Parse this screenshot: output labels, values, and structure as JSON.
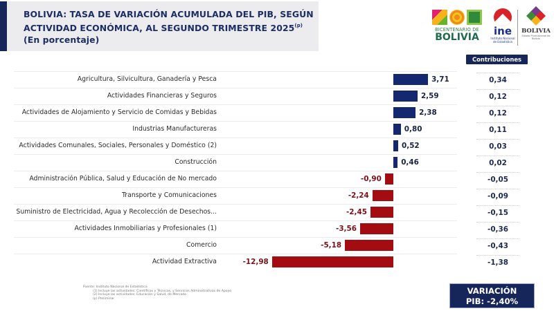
{
  "header": {
    "title_line1": "BOLIVIA: TASA DE VARIACIÓN ACUMULADA DEL PIB, SEGÚN",
    "title_line2": "ACTIVIDAD ECONÓMICA, AL SEGUNDO TRIMESTRE 2025",
    "title_superscript": "(p)",
    "subtitle": "(En porcentaje)"
  },
  "logos": {
    "bicentenario_small": "BICENTENARIO DE",
    "bicentenario_big": "BOLIVIA",
    "ine_text": "ine",
    "ine_sub": "Instituto Nacional de Estadística",
    "bolivia_text": "BOLIVIA",
    "bolivia_sub": "Estado Plurinacional de Bolivia"
  },
  "contributions_header": "Contribuciones",
  "chart_data": {
    "type": "bar",
    "orientation": "horizontal",
    "title": "BOLIVIA: TASA DE VARIACIÓN ACUMULADA DEL PIB, SEGÚN ACTIVIDAD ECONÓMICA, AL SEGUNDO TRIMESTRE 2025(p)",
    "subtitle": "(En porcentaje)",
    "xlabel": "",
    "ylabel": "",
    "grid": false,
    "xlim": [
      -12.98,
      3.71
    ],
    "colors": {
      "positive": "#13286e",
      "negative": "#a30d12"
    },
    "categories": [
      "Agricultura, Silvicultura, Ganadería y Pesca",
      "Actividades Financieras y Seguros",
      "Actividades de Alojamiento y Servicio de Comidas y Bebidas",
      "Industrias Manufactureras",
      "Actividades Comunales, Sociales, Personales y Doméstico (2)",
      "Construcción",
      "Administración Pública, Salud y Educación de No mercado",
      "Transporte y Comunicaciones",
      "Suministro de Electricidad, Agua y Recolección de Desechos...",
      "Actividades Inmobiliarias y Profesionales (1)",
      "Comercio",
      "Actividad Extractiva"
    ],
    "values": [
      3.71,
      2.59,
      2.38,
      0.8,
      0.52,
      0.46,
      -0.9,
      -2.24,
      -2.45,
      -3.56,
      -5.18,
      -12.98
    ],
    "value_labels": [
      "3,71",
      "2,59",
      "2,38",
      "0,80",
      "0,52",
      "0,46",
      "-0,90",
      "-2,24",
      "-2,45",
      "-3,56",
      "-5,18",
      "-12,98"
    ],
    "contributions": [
      0.34,
      0.12,
      0.12,
      0.11,
      0.03,
      0.02,
      -0.05,
      -0.09,
      -0.15,
      -0.36,
      -0.43,
      -1.38
    ],
    "contribution_labels": [
      "0,34",
      "0,12",
      "0,12",
      "0,11",
      "0,03",
      "0,02",
      "-0,05",
      "-0,09",
      "-0,15",
      "-0,36",
      "-0,43",
      "-1,38"
    ]
  },
  "footnotes": {
    "source": "Fuente: Instituto Nacional de Estadística",
    "note1": "(1) Incluye las actividades: Científicas y Técnicas, y Servicios Administrativos de Apoyo",
    "note2": "(2) Incluye las actividades: Educación y Salud, de Mercado",
    "note3": "(p) Preliminar"
  },
  "variation": {
    "line1": "VARIACIÓN",
    "line2": "PIB: -2,40%"
  }
}
